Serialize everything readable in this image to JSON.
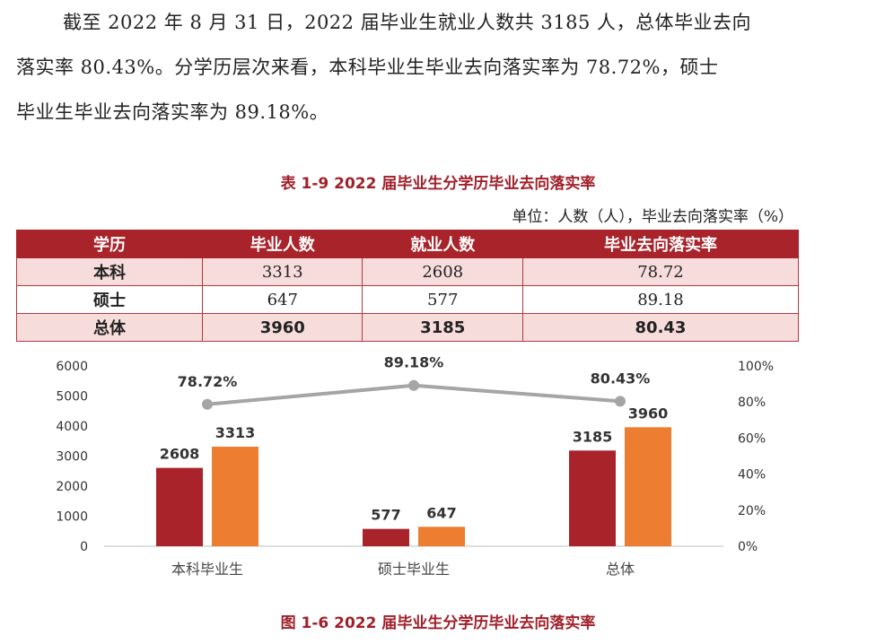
{
  "paragraph": {
    "line1": "截至 2022 年 8 月 31 日，2022 届毕业生就业人数共 3185 人，总体毕业去向",
    "line2": "落实率 80.43%。分学历层次来看，本科毕业生毕业去向落实率为 78.72%，硕士",
    "line3": "毕业生毕业去向落实率为 89.18%。"
  },
  "table": {
    "caption": "表 1-9  2022 届毕业生分学历毕业去向落实率",
    "unit": "单位：人数（人），毕业去向落实率（%）",
    "headers": [
      "学历",
      "毕业人数",
      "就业人数",
      "毕业去向落实率"
    ],
    "rows": [
      [
        "本科",
        "3313",
        "2608",
        "78.72"
      ],
      [
        "硕士",
        "647",
        "577",
        "89.18"
      ],
      [
        "总体",
        "3960",
        "3185",
        "80.43"
      ]
    ]
  },
  "figure": {
    "caption": "图 1-6  2022 届毕业生分学历毕业去向落实率"
  },
  "chart_data": {
    "type": "bar",
    "categories": [
      "本科毕业生",
      "硕士毕业生",
      "总体"
    ],
    "series": [
      {
        "values": [
          2608,
          577,
          3185
        ],
        "color": "#a9232b",
        "axis": "left",
        "kind": "bar"
      },
      {
        "values": [
          3313,
          647,
          3960
        ],
        "color": "#ed7d31",
        "axis": "left",
        "kind": "bar"
      },
      {
        "values": [
          78.72,
          89.18,
          80.43
        ],
        "color": "#a5a5a5",
        "axis": "right",
        "kind": "line",
        "labels": [
          "78.72%",
          "89.18%",
          "80.43%"
        ]
      }
    ],
    "ylim_left": [
      0,
      6000
    ],
    "yticks_left": [
      "0",
      "1000",
      "2000",
      "3000",
      "4000",
      "5000",
      "6000"
    ],
    "ylim_right": [
      0,
      100
    ],
    "yticks_right": [
      "0%",
      "20%",
      "40%",
      "60%",
      "80%",
      "100%"
    ],
    "title": "",
    "xlabel": "",
    "ylabel": "",
    "grid": false,
    "legend": "none"
  }
}
